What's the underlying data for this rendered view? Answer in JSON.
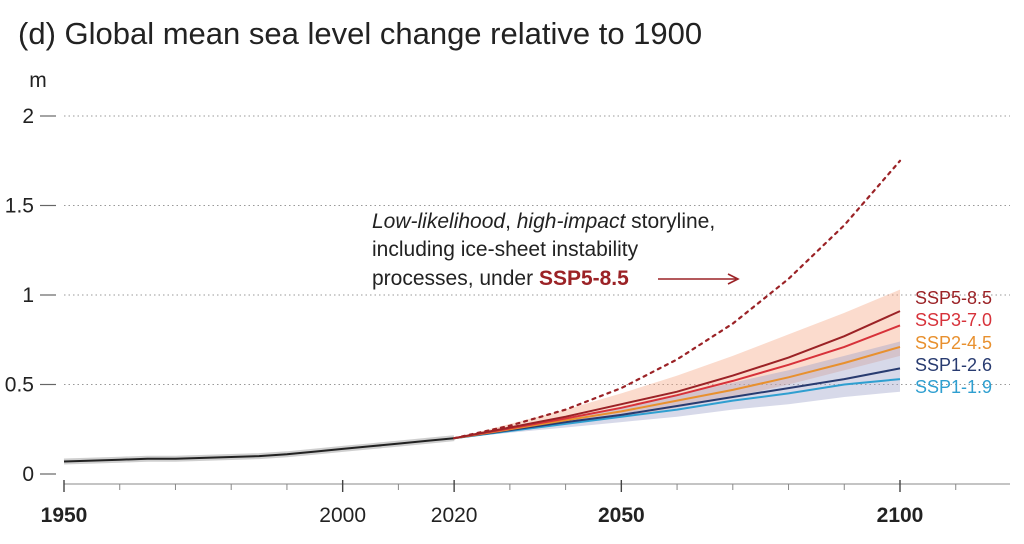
{
  "title": "(d) Global mean sea level change relative to 1900",
  "chart_data": {
    "type": "line",
    "title": "(d) Global mean sea level change relative to 1900",
    "ylabel": "m",
    "xlim": [
      1950,
      2120
    ],
    "ylim": [
      0,
      2.2
    ],
    "x_ticks": [
      {
        "value": 1950,
        "label": "1950",
        "bold": true
      },
      {
        "value": 2000,
        "label": "2000",
        "bold": false
      },
      {
        "value": 2020,
        "label": "2020",
        "bold": false
      },
      {
        "value": 2050,
        "label": "2050",
        "bold": true
      },
      {
        "value": 2100,
        "label": "2100",
        "bold": true
      }
    ],
    "x_minor_ticks": [
      1960,
      1970,
      1980,
      1990,
      2010,
      2030,
      2040,
      2060,
      2070,
      2080,
      2090,
      2110
    ],
    "y_ticks": [
      {
        "value": 0,
        "label": "0"
      },
      {
        "value": 0.5,
        "label": "0.5"
      },
      {
        "value": 1,
        "label": "1"
      },
      {
        "value": 1.5,
        "label": "1.5"
      },
      {
        "value": 2,
        "label": "2"
      }
    ],
    "grid": "horizontal dotted",
    "historical": {
      "x": [
        1950,
        1955,
        1960,
        1965,
        1970,
        1975,
        1980,
        1985,
        1990,
        1995,
        2000,
        2005,
        2010,
        2015,
        2020
      ],
      "y": [
        0.07,
        0.075,
        0.08,
        0.085,
        0.085,
        0.09,
        0.095,
        0.1,
        0.11,
        0.125,
        0.14,
        0.155,
        0.17,
        0.185,
        0.2
      ],
      "color": "#222222"
    },
    "series": [
      {
        "name": "SSP5-8.5",
        "color": "#9b2226",
        "x": [
          2020,
          2030,
          2040,
          2050,
          2060,
          2070,
          2080,
          2090,
          2100
        ],
        "y": [
          0.2,
          0.26,
          0.32,
          0.39,
          0.46,
          0.55,
          0.65,
          0.77,
          0.91
        ]
      },
      {
        "name": "SSP3-7.0",
        "color": "#d7323a",
        "x": [
          2020,
          2030,
          2040,
          2050,
          2060,
          2070,
          2080,
          2090,
          2100
        ],
        "y": [
          0.2,
          0.255,
          0.31,
          0.37,
          0.44,
          0.52,
          0.61,
          0.71,
          0.83
        ]
      },
      {
        "name": "SSP2-4.5",
        "color": "#e8902e",
        "x": [
          2020,
          2030,
          2040,
          2050,
          2060,
          2070,
          2080,
          2090,
          2100
        ],
        "y": [
          0.2,
          0.25,
          0.3,
          0.35,
          0.41,
          0.47,
          0.54,
          0.62,
          0.71
        ]
      },
      {
        "name": "SSP1-2.6",
        "color": "#283b70",
        "x": [
          2020,
          2030,
          2040,
          2050,
          2060,
          2070,
          2080,
          2090,
          2100
        ],
        "y": [
          0.2,
          0.245,
          0.29,
          0.33,
          0.38,
          0.43,
          0.48,
          0.53,
          0.59
        ]
      },
      {
        "name": "SSP1-1.9",
        "color": "#2f9fd0",
        "x": [
          2020,
          2030,
          2040,
          2050,
          2060,
          2070,
          2080,
          2090,
          2100
        ],
        "y": [
          0.2,
          0.24,
          0.28,
          0.32,
          0.36,
          0.41,
          0.45,
          0.5,
          0.53
        ]
      }
    ],
    "bands": [
      {
        "series": "SSP5-8.5",
        "color": "#f4a582",
        "x": [
          2020,
          2030,
          2040,
          2050,
          2060,
          2070,
          2080,
          2090,
          2100
        ],
        "lower": [
          0.2,
          0.24,
          0.28,
          0.32,
          0.37,
          0.43,
          0.5,
          0.58,
          0.66
        ],
        "upper": [
          0.2,
          0.28,
          0.36,
          0.45,
          0.55,
          0.66,
          0.78,
          0.9,
          1.03
        ]
      },
      {
        "series": "SSP1-2.6",
        "color": "#9a9fc9",
        "x": [
          2020,
          2030,
          2040,
          2050,
          2060,
          2070,
          2080,
          2090,
          2100
        ],
        "lower": [
          0.2,
          0.23,
          0.26,
          0.29,
          0.32,
          0.36,
          0.39,
          0.43,
          0.46
        ],
        "upper": [
          0.2,
          0.26,
          0.31,
          0.37,
          0.44,
          0.51,
          0.58,
          0.66,
          0.74
        ]
      }
    ],
    "storyline": {
      "name": "SSP5-8.5",
      "style": "dotted",
      "color": "#9b2226",
      "x": [
        2020,
        2030,
        2040,
        2050,
        2060,
        2070,
        2080,
        2090,
        2100
      ],
      "y": [
        0.2,
        0.27,
        0.36,
        0.48,
        0.64,
        0.84,
        1.09,
        1.39,
        1.75
      ]
    },
    "annotation": {
      "line1_italic": "Low-likelihood",
      "line1_sep": ", ",
      "line1_italic2": "high-impact",
      "line1_rest": " storyline,",
      "line2": "including ice-sheet instability",
      "line3": "processes, under ",
      "line3_highlight": "SSP5-8.5",
      "highlight_color": "#9b2226"
    }
  }
}
